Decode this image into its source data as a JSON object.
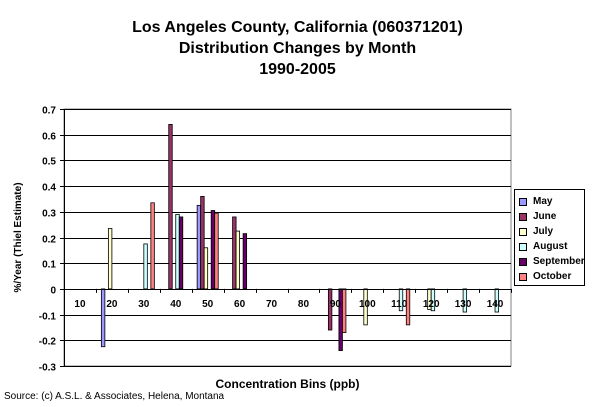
{
  "chart_data": {
    "type": "bar",
    "title_lines": [
      "Los Angeles County, California (060371201)",
      "Distribution Changes by Month",
      "1990-2005"
    ],
    "xlabel": "Concentration Bins (ppb)",
    "ylabel": "%/Year (Thiel Estimate)",
    "ylim": [
      -0.3,
      0.7
    ],
    "yticks": [
      -0.3,
      -0.2,
      -0.1,
      0,
      0.1,
      0.2,
      0.3,
      0.4,
      0.5,
      0.6,
      0.7
    ],
    "ytick_labels": [
      "-0.3",
      "-0.2",
      "-0.1",
      "0",
      "0.1",
      "0.2",
      "0.3",
      "0.4",
      "0.5",
      "0.6",
      "0.7"
    ],
    "categories": [
      "10",
      "20",
      "30",
      "40",
      "50",
      "60",
      "70",
      "80",
      "90",
      "100",
      "110",
      "120",
      "130",
      "140"
    ],
    "grid": "horizontal",
    "legend_position": "right",
    "series": [
      {
        "name": "May",
        "color": "#9999ff",
        "values": [
          0,
          -0.225,
          0,
          0,
          0.325,
          0,
          0,
          0,
          0,
          0,
          0,
          0,
          0,
          0
        ]
      },
      {
        "name": "June",
        "color": "#993366",
        "values": [
          0,
          0,
          0,
          0.64,
          0.36,
          0.28,
          0,
          0,
          -0.16,
          0,
          0,
          0,
          0,
          0
        ]
      },
      {
        "name": "July",
        "color": "#ffffcc",
        "values": [
          0,
          0.235,
          0,
          0,
          0.16,
          0.225,
          0,
          0,
          0,
          -0.14,
          0,
          -0.08,
          0,
          0
        ]
      },
      {
        "name": "August",
        "color": "#ccffff",
        "values": [
          0,
          0,
          0.175,
          0.29,
          0,
          0,
          0,
          0,
          0,
          0,
          -0.085,
          -0.085,
          -0.09,
          -0.09
        ]
      },
      {
        "name": "September",
        "color": "#660066",
        "values": [
          0,
          0,
          0,
          0.28,
          0.305,
          0.215,
          0,
          0,
          -0.24,
          0,
          0,
          0,
          0,
          0
        ]
      },
      {
        "name": "October",
        "color": "#ff8080",
        "values": [
          0,
          0,
          0.335,
          0,
          0.295,
          0,
          0,
          0,
          -0.17,
          0,
          -0.14,
          0,
          0,
          0
        ]
      }
    ]
  },
  "source": "Source: (c) A.S.L. & Associates, Helena, Montana"
}
